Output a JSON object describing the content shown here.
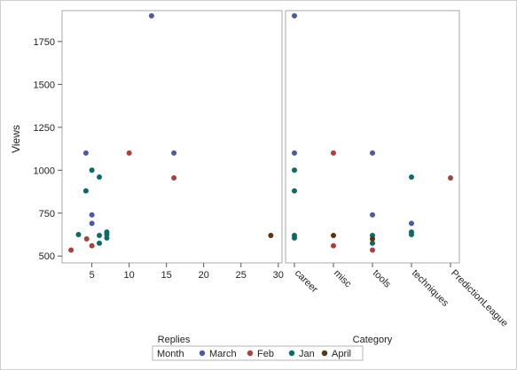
{
  "chart_data": [
    {
      "type": "scatter",
      "xlabel": "Replies",
      "ylabel": "Views",
      "xlim": [
        1,
        30.5
      ],
      "ylim": [
        460,
        1930
      ],
      "xticks": [
        5,
        10,
        15,
        20,
        25,
        30
      ],
      "yticks": [
        500,
        750,
        1000,
        1250,
        1500,
        1750
      ],
      "grid": false,
      "series": [
        {
          "name": "March",
          "points": [
            [
              13,
              1900
            ],
            [
              4.2,
              1100
            ],
            [
              16,
              1100
            ],
            [
              5,
              740
            ],
            [
              5,
              690
            ]
          ]
        },
        {
          "name": "Feb",
          "points": [
            [
              10,
              1100
            ],
            [
              16,
              955
            ],
            [
              4.3,
              600
            ],
            [
              2.2,
              535
            ],
            [
              5,
              560
            ]
          ]
        },
        {
          "name": "Jan",
          "points": [
            [
              5,
              1000
            ],
            [
              6,
              960
            ],
            [
              4.2,
              880
            ],
            [
              3.2,
              625
            ],
            [
              6,
              620
            ],
            [
              7,
              640
            ],
            [
              7,
              625
            ],
            [
              7,
              605
            ],
            [
              6,
              575
            ]
          ]
        },
        {
          "name": "April",
          "points": [
            [
              29,
              620
            ]
          ]
        }
      ]
    },
    {
      "type": "scatter",
      "xlabel": "Category",
      "ylabel": "",
      "categories": [
        "career",
        "misc",
        "tools",
        "techniques",
        "PredictionLeague"
      ],
      "ylim": [
        460,
        1930
      ],
      "grid": false,
      "series": [
        {
          "name": "March",
          "points": [
            [
              "career",
              1900
            ],
            [
              "career",
              1100
            ],
            [
              "tools",
              1100
            ],
            [
              "tools",
              740
            ],
            [
              "techniques",
              690
            ]
          ]
        },
        {
          "name": "Feb",
          "points": [
            [
              "misc",
              1100
            ],
            [
              "misc",
              560
            ],
            [
              "tools",
              535
            ],
            [
              "PredictionLeague",
              955
            ]
          ]
        },
        {
          "name": "Jan",
          "points": [
            [
              "career",
              1000
            ],
            [
              "career",
              880
            ],
            [
              "career",
              620
            ],
            [
              "career",
              605
            ],
            [
              "tools",
              620
            ],
            [
              "tools",
              575
            ],
            [
              "techniques",
              960
            ],
            [
              "techniques",
              640
            ],
            [
              "techniques",
              625
            ]
          ]
        },
        {
          "name": "April",
          "points": [
            [
              "misc",
              620
            ],
            [
              "tools",
              600
            ]
          ]
        }
      ]
    }
  ],
  "legend": {
    "title": "Month",
    "placement": "bottom",
    "items": [
      {
        "label": "March",
        "color": "#4a5aa6"
      },
      {
        "label": "Feb",
        "color": "#a9413c"
      },
      {
        "label": "Jan",
        "color": "#0b6b66"
      },
      {
        "label": "April",
        "color": "#5a3510"
      }
    ]
  },
  "colors": {
    "March": "#4a5aa6",
    "Feb": "#a9413c",
    "Jan": "#0b6b66",
    "April": "#5a3510",
    "frame": "#c8c8c8",
    "panel_border": "#a9a9a9"
  }
}
